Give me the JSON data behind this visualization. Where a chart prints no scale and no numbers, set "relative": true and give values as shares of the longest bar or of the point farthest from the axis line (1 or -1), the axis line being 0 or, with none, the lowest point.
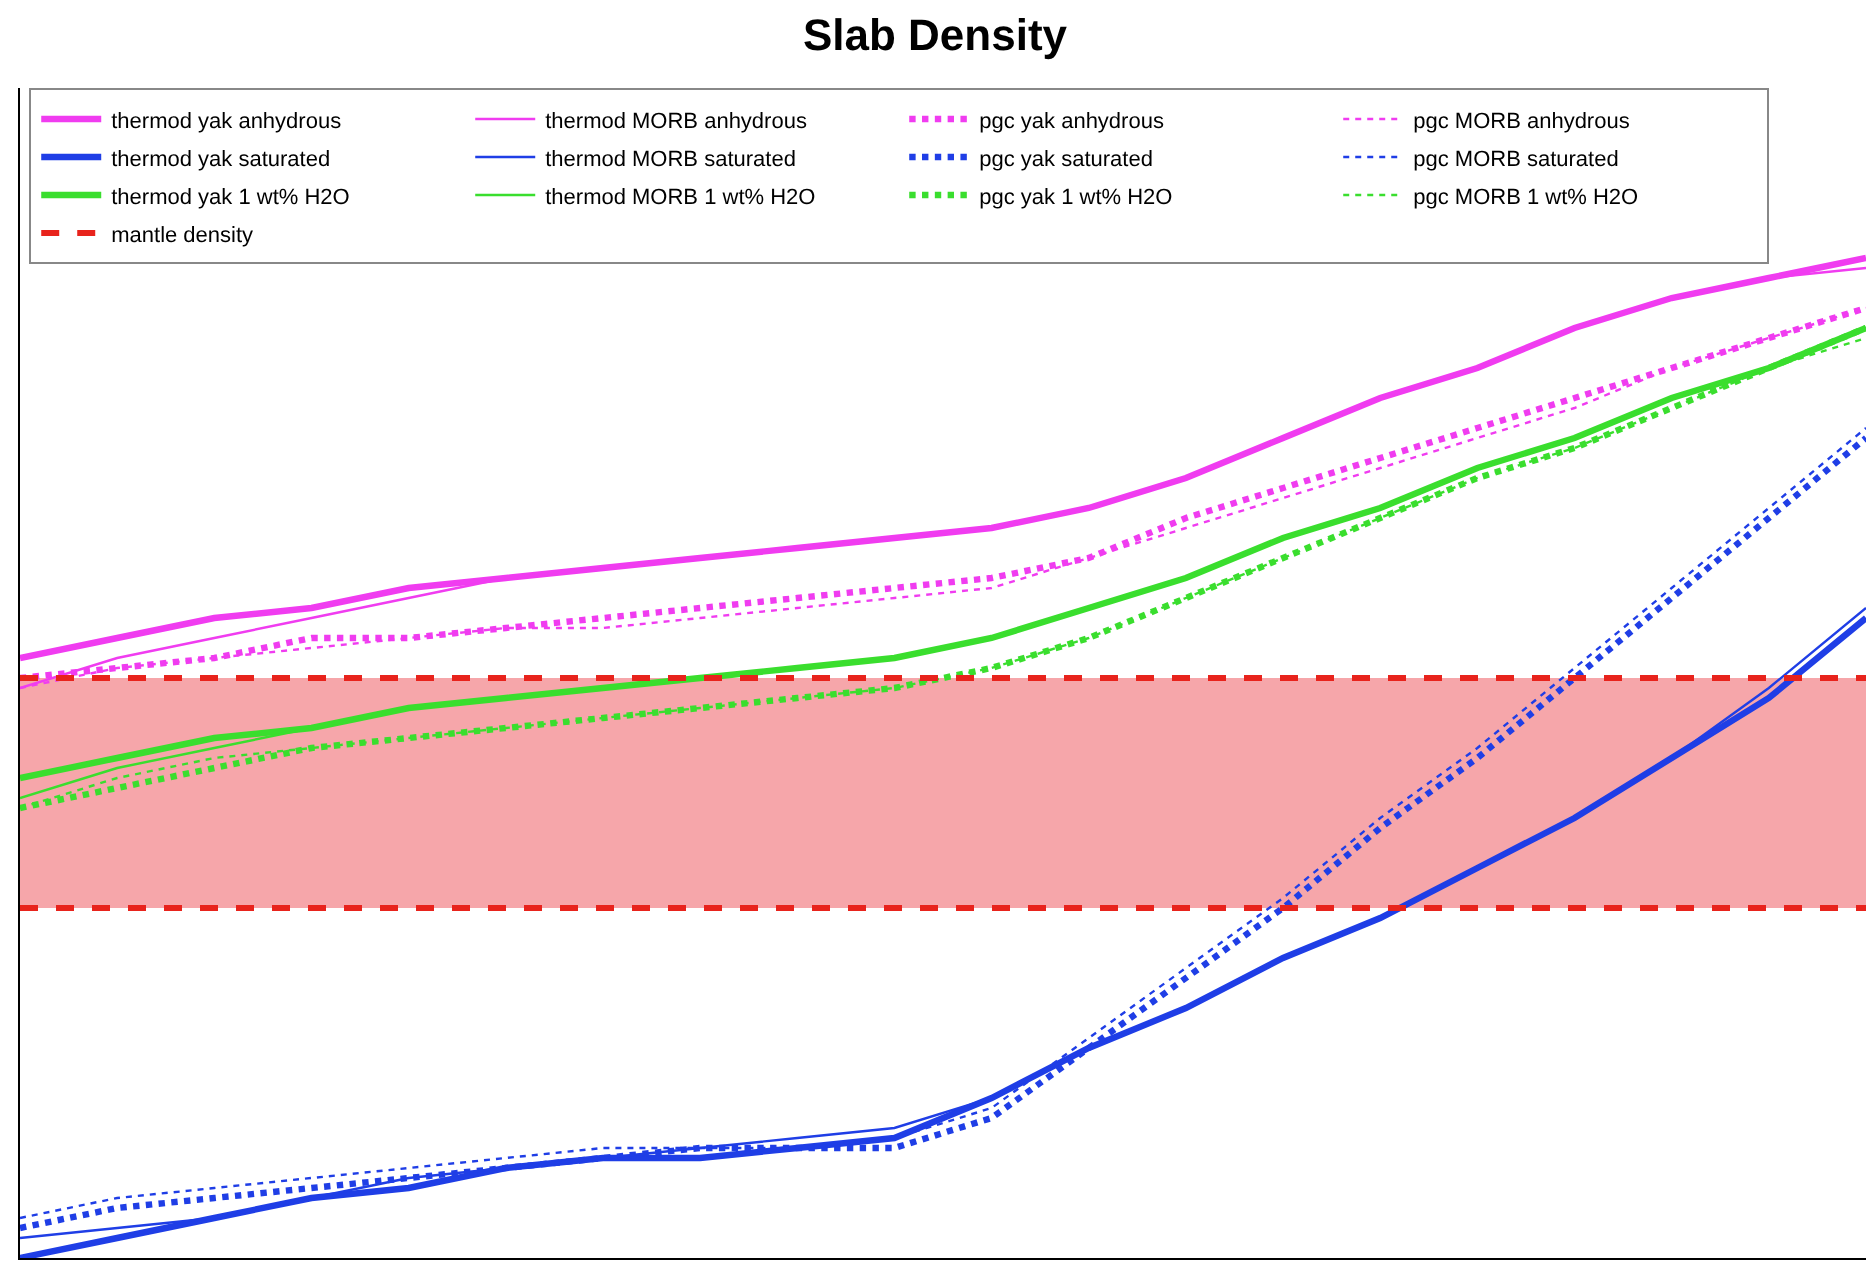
{
  "chart_data": {
    "type": "line",
    "title": "Slab Density",
    "relative": true,
    "legend": "top left",
    "grid": false,
    "marker": "none",
    "categories": [
      null,
      null,
      null,
      null,
      null,
      null,
      null,
      null,
      null,
      null,
      null,
      null,
      null,
      null,
      null,
      null,
      null,
      null,
      null,
      null
    ],
    "series": [
      {
        "name": "thermod yak anhydrous",
        "color": "#f03cf0",
        "line_style": "solid",
        "values": [
          0.6,
          0.62,
          0.64,
          0.65,
          0.67,
          0.68,
          0.69,
          0.7,
          0.71,
          0.72,
          0.73,
          0.75,
          0.78,
          0.82,
          0.86,
          0.89,
          0.93,
          0.96,
          0.98,
          1.0
        ]
      },
      {
        "name": "thermod MORB anhydrous",
        "color": "#f03cf0",
        "line_style": "solid",
        "values": [
          0.57,
          0.6,
          0.62,
          0.64,
          0.66,
          0.68,
          0.69,
          0.7,
          0.71,
          0.72,
          0.73,
          0.75,
          0.78,
          0.82,
          0.86,
          0.89,
          0.93,
          0.96,
          0.98,
          0.99
        ]
      },
      {
        "name": "pgc yak anhydrous",
        "color": "#f03cf0",
        "line_style": "dotted",
        "values": [
          0.58,
          0.59,
          0.6,
          0.62,
          0.62,
          0.63,
          0.64,
          0.65,
          0.66,
          0.67,
          0.68,
          0.7,
          0.74,
          0.77,
          0.8,
          0.83,
          0.86,
          0.89,
          0.92,
          0.95
        ]
      },
      {
        "name": "pgc MORB anhydrous",
        "color": "#f03cf0",
        "line_style": "dotted",
        "values": [
          0.57,
          0.59,
          0.6,
          0.61,
          0.62,
          0.63,
          0.63,
          0.64,
          0.65,
          0.66,
          0.67,
          0.7,
          0.73,
          0.76,
          0.79,
          0.82,
          0.85,
          0.89,
          0.92,
          0.95
        ]
      },
      {
        "name": "thermod yak saturated",
        "color": "#1f3ee6",
        "line_style": "solid",
        "values": [
          0.0,
          0.02,
          0.04,
          0.06,
          0.07,
          0.09,
          0.1,
          0.1,
          0.11,
          0.12,
          0.16,
          0.21,
          0.25,
          0.3,
          0.34,
          0.39,
          0.44,
          0.5,
          0.56,
          0.64
        ]
      },
      {
        "name": "thermod MORB saturated",
        "color": "#1f3ee6",
        "line_style": "solid",
        "values": [
          0.02,
          0.03,
          0.04,
          0.06,
          0.08,
          0.09,
          0.1,
          0.11,
          0.12,
          0.13,
          0.16,
          0.21,
          0.25,
          0.3,
          0.34,
          0.39,
          0.44,
          0.5,
          0.57,
          0.65
        ]
      },
      {
        "name": "pgc yak saturated",
        "color": "#1f3ee6",
        "line_style": "dotted",
        "values": [
          0.03,
          0.05,
          0.06,
          0.07,
          0.08,
          0.09,
          0.1,
          0.11,
          0.11,
          0.11,
          0.14,
          0.21,
          0.28,
          0.35,
          0.43,
          0.5,
          0.58,
          0.66,
          0.74,
          0.82
        ]
      },
      {
        "name": "pgc MORB saturated",
        "color": "#1f3ee6",
        "line_style": "dotted",
        "values": [
          0.04,
          0.06,
          0.07,
          0.08,
          0.09,
          0.1,
          0.11,
          0.11,
          0.11,
          0.12,
          0.15,
          0.22,
          0.29,
          0.36,
          0.44,
          0.51,
          0.59,
          0.67,
          0.75,
          0.83
        ]
      },
      {
        "name": "thermod yak 1 wt% H2O",
        "color": "#3ade2e",
        "line_style": "solid",
        "values": [
          0.48,
          0.5,
          0.52,
          0.53,
          0.55,
          0.56,
          0.57,
          0.58,
          0.59,
          0.6,
          0.62,
          0.65,
          0.68,
          0.72,
          0.75,
          0.79,
          0.82,
          0.86,
          0.89,
          0.93
        ]
      },
      {
        "name": "thermod MORB 1 wt% H2O",
        "color": "#3ade2e",
        "line_style": "solid",
        "values": [
          0.46,
          0.49,
          0.51,
          0.53,
          0.55,
          0.56,
          0.57,
          0.58,
          0.59,
          0.6,
          0.62,
          0.65,
          0.68,
          0.72,
          0.75,
          0.79,
          0.82,
          0.86,
          0.89,
          0.93
        ]
      },
      {
        "name": "pgc yak 1 wt% H2O",
        "color": "#3ade2e",
        "line_style": "dotted",
        "values": [
          0.45,
          0.47,
          0.49,
          0.51,
          0.52,
          0.53,
          0.54,
          0.55,
          0.56,
          0.57,
          0.59,
          0.62,
          0.66,
          0.7,
          0.74,
          0.78,
          0.81,
          0.85,
          0.89,
          0.93
        ]
      },
      {
        "name": "pgc MORB 1 wt% H2O",
        "color": "#3ade2e",
        "line_style": "dotted",
        "values": [
          0.45,
          0.48,
          0.5,
          0.51,
          0.52,
          0.53,
          0.54,
          0.55,
          0.56,
          0.57,
          0.59,
          0.62,
          0.66,
          0.7,
          0.74,
          0.78,
          0.81,
          0.85,
          0.89,
          0.92
        ]
      }
    ],
    "bands": [
      {
        "axis": "y",
        "from": 0.35,
        "to": 0.58,
        "color": "#f6a6aa"
      }
    ],
    "ref_lines": [
      {
        "axis": "y",
        "value": 0.58,
        "label": "mantle density",
        "color": "#e8231c",
        "line_style": "dashed"
      },
      {
        "axis": "y",
        "value": 0.35,
        "color": "#e8231c",
        "line_style": "dashed"
      }
    ]
  }
}
